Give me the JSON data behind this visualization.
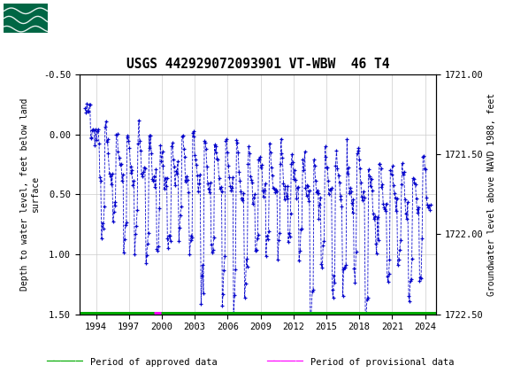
{
  "title": "USGS 442929072093901 VT-WBW  46 T4",
  "header_color": "#006644",
  "ylabel_left": "Depth to water level, feet below land\nsurface",
  "ylabel_right": "Groundwater level above NAVD 1988, feet",
  "ylim_left": [
    -0.5,
    1.5
  ],
  "ylim_right": [
    1721.0,
    1722.5
  ],
  "yticks_left": [
    -0.5,
    0.0,
    0.5,
    1.0,
    1.5
  ],
  "yticks_right": [
    1721.0,
    1721.5,
    1722.0,
    1722.5
  ],
  "xticks": [
    1994,
    1997,
    2000,
    2003,
    2006,
    2009,
    2012,
    2015,
    2018,
    2021,
    2024
  ],
  "xlim": [
    1992.5,
    2025.0
  ],
  "grid_color": "#cccccc",
  "data_color": "#0000cc",
  "approved_color": "#00aa00",
  "provisional_color": "#ff00ff",
  "approved_bar_y": 1.5,
  "provisional_xstart": 1999.3,
  "provisional_xend": 1999.9
}
